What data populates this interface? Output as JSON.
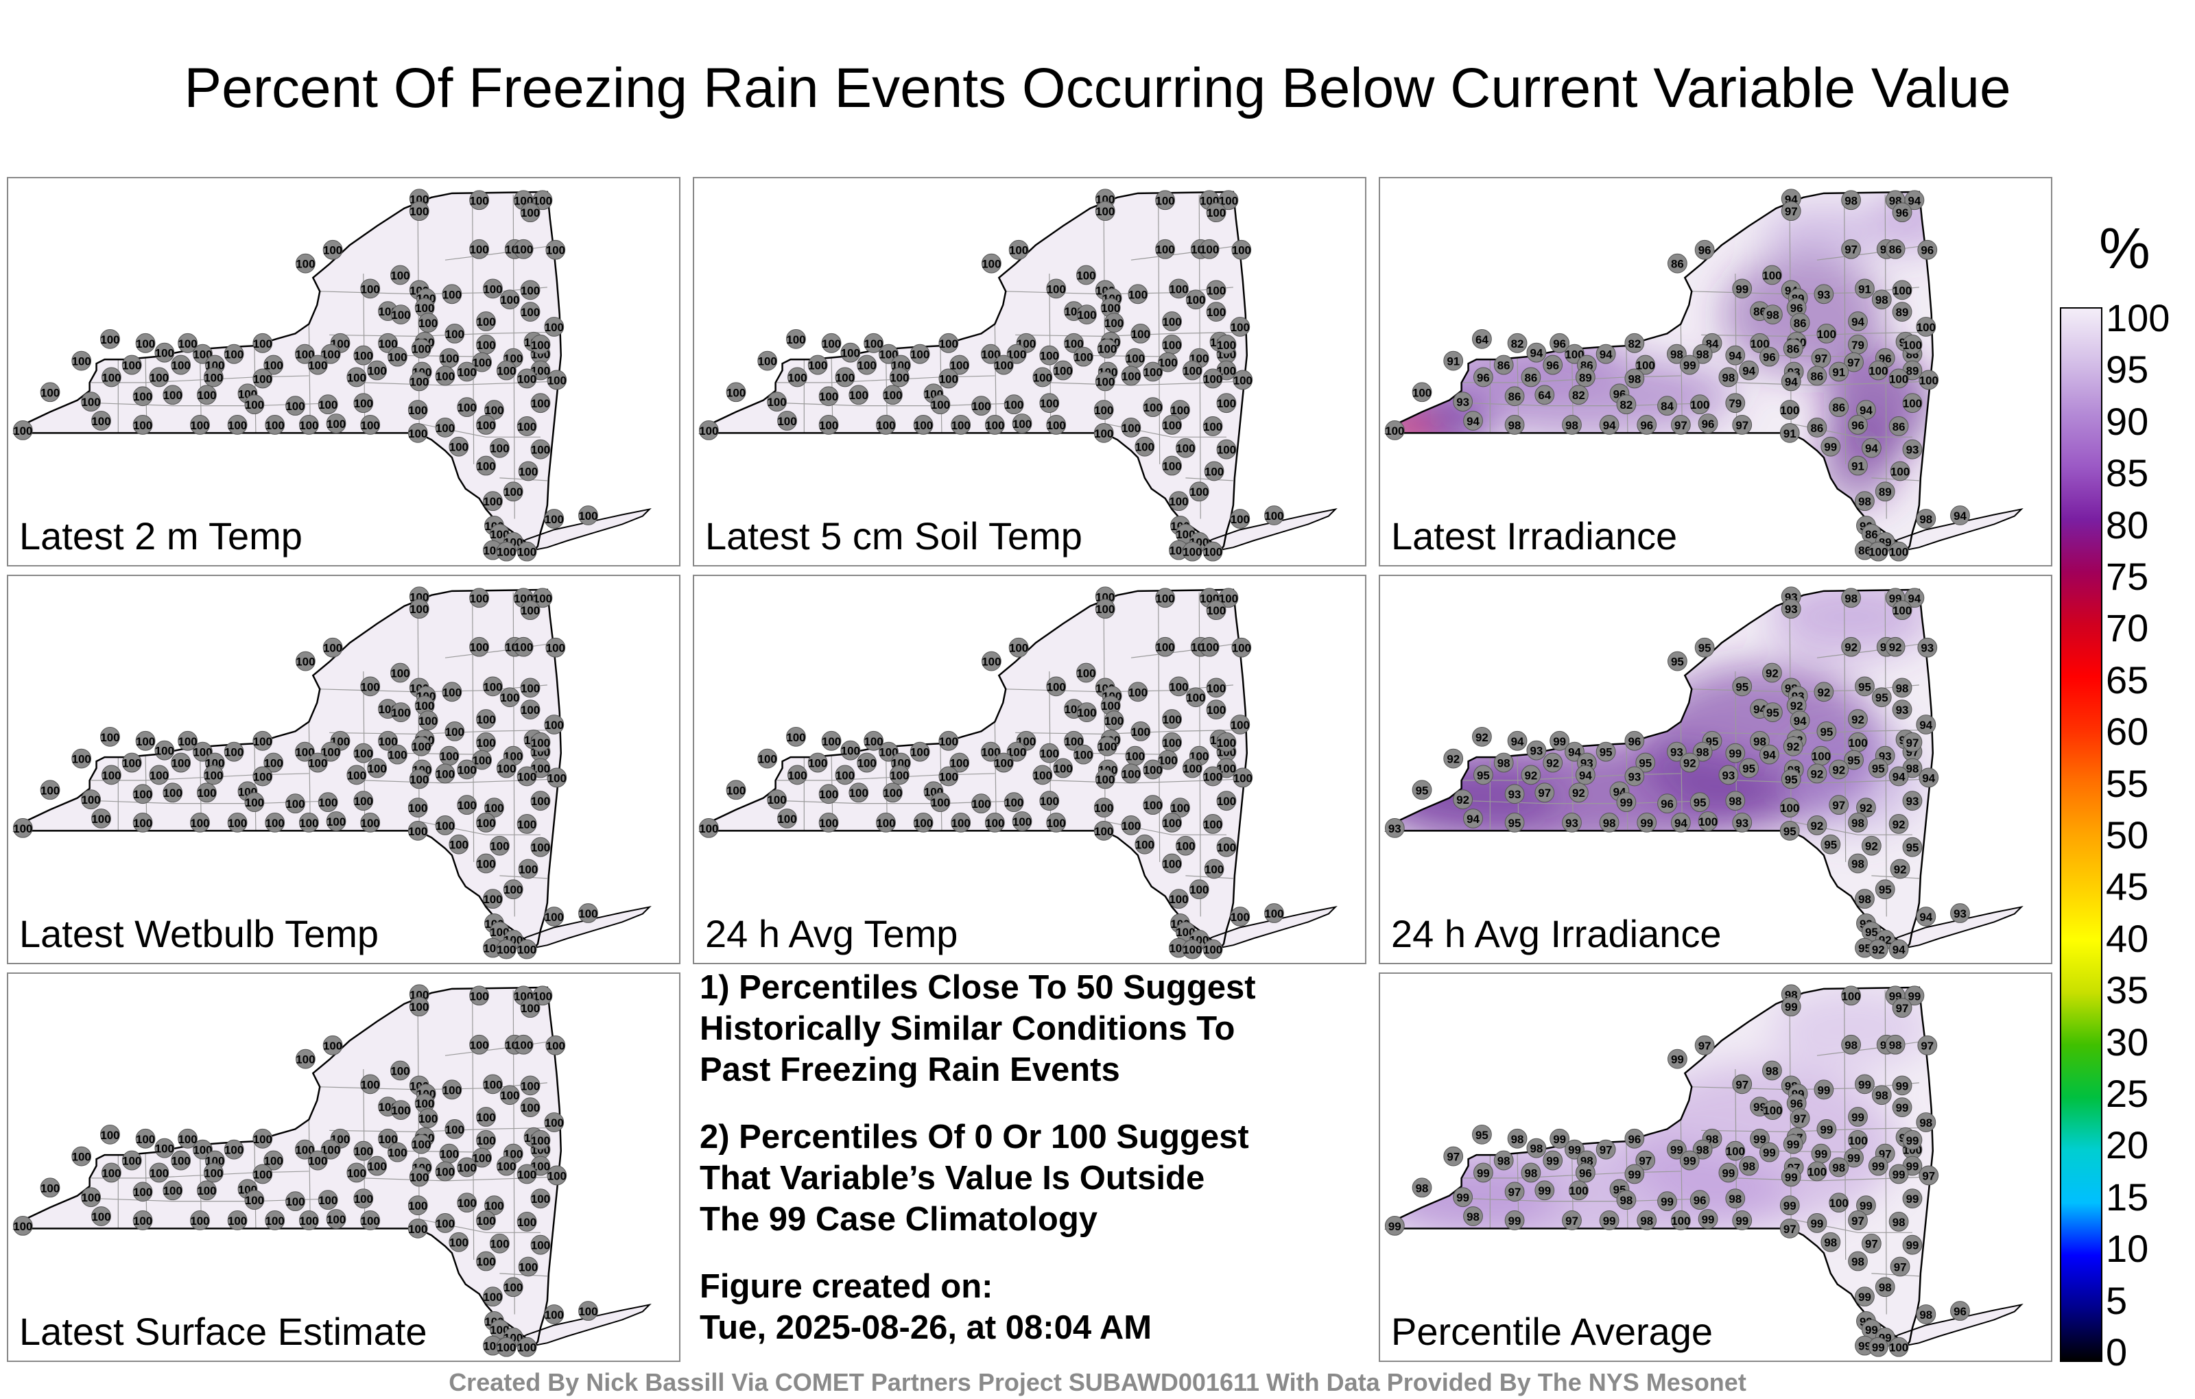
{
  "title": "Percent Of Freezing Rain Events Occurring Below Current Variable Value",
  "panels": [
    {
      "label": "Latest 2 m Temp",
      "style": "plain"
    },
    {
      "label": "Latest 5 cm Soil Temp",
      "style": "plain"
    },
    {
      "label": "Latest Irradiance",
      "style": "irr",
      "values": [
        94,
        98,
        98,
        94,
        96,
        97,
        96,
        97,
        91,
        86,
        96,
        86,
        100,
        99,
        94,
        93,
        91,
        100,
        89,
        98,
        96,
        86,
        89,
        98,
        94,
        86,
        100,
        100,
        100,
        93,
        86,
        64,
        82,
        96,
        82,
        84,
        100,
        79,
        100,
        86,
        94,
        100
      ]
    },
    {
      "label": "Latest Wetbulb Temp",
      "style": "plain"
    },
    {
      "label": "24 h Avg Temp",
      "style": "plain"
    },
    {
      "label": "24 h Avg Irradiance",
      "style": "avgirr",
      "values": [
        93,
        98,
        99,
        94,
        100,
        93,
        95,
        92,
        98,
        92,
        93,
        95,
        92,
        95,
        98,
        92,
        95,
        98,
        93,
        95,
        92,
        94,
        93,
        95,
        92,
        94,
        94,
        95,
        92,
        93,
        97,
        92,
        94,
        99,
        96,
        95,
        98,
        100,
        97,
        92,
        93,
        94,
        95
      ]
    },
    {
      "label": "Latest Surface Estimate",
      "style": "plain"
    },
    {
      "label": "Percentile Average",
      "style": "avg",
      "values": [
        98,
        100,
        99,
        99,
        97,
        99,
        97,
        98,
        99,
        98,
        97,
        99,
        98,
        97,
        98,
        99,
        99,
        99,
        99,
        98,
        96,
        99,
        99,
        100,
        99,
        97,
        98,
        99,
        97,
        99,
        100,
        95,
        98,
        99,
        96,
        98,
        99,
        100,
        99,
        99,
        98,
        99,
        97,
        99
      ]
    }
  ],
  "notes": {
    "n1": "1) Percentiles Close To 50 Suggest\nHistorically Similar Conditions To\nPast Freezing Rain Events",
    "n2": "2) Percentiles Of 0 Or 100 Suggest\nThat Variable’s Value Is Outside\nThe 99 Case Climatology",
    "created_label": "Figure created on:",
    "created_value": "Tue, 2025-08-26, at 08:04 AM"
  },
  "colorbar": {
    "title": "%",
    "ticks": [
      "100",
      "95",
      "90",
      "85",
      "80",
      "75",
      "70",
      "65",
      "60",
      "55",
      "50",
      "45",
      "40",
      "35",
      "30",
      "25",
      "20",
      "15",
      "10",
      "5",
      "0"
    ],
    "colors": [
      "#000000",
      "#00008b",
      "#0000ff",
      "#00bfff",
      "#00ced1",
      "#00c040",
      "#40c000",
      "#c8e000",
      "#ffff00",
      "#ffd000",
      "#ffa500",
      "#ff7000",
      "#ff3000",
      "#ff0000",
      "#d00020",
      "#a0005a",
      "#7a1fa2",
      "#9b59c5",
      "#b48ad6",
      "#d5c0e8",
      "#f4eef8"
    ]
  },
  "credit": "Created By Nick Bassill Via COMET Partners Project SUBAWD001611 With Data Provided By The NYS Mesonet",
  "site_value": "100"
}
